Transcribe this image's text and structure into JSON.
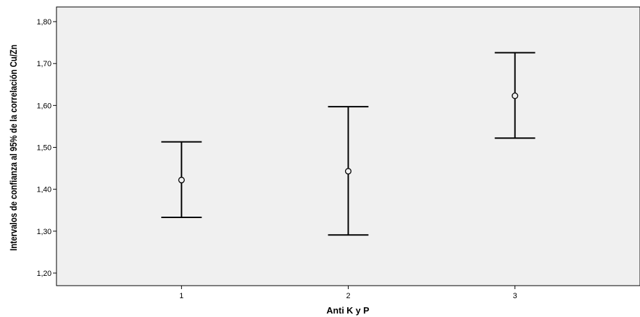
{
  "chart_data": {
    "type": "errorbar",
    "title": "",
    "xlabel": "Anti K y P",
    "ylabel": "Intervalos de confianza al 95% de la correlación Cu/Zn",
    "categories": [
      "1",
      "2",
      "3"
    ],
    "points": [
      {
        "category": "1",
        "mean": 1.422,
        "lower": 1.333,
        "upper": 1.513
      },
      {
        "category": "2",
        "mean": 1.443,
        "lower": 1.291,
        "upper": 1.597
      },
      {
        "category": "3",
        "mean": 1.623,
        "lower": 1.522,
        "upper": 1.726
      }
    ],
    "ylim": [
      1.17,
      1.835
    ],
    "yticks": [
      1.2,
      1.3,
      1.4,
      1.5,
      1.6,
      1.7,
      1.8
    ],
    "ytick_labels": [
      "1,20",
      "1,30",
      "1,40",
      "1,50",
      "1,60",
      "1,70",
      "1,80"
    ],
    "grid": false,
    "colors": {
      "plot_background": "#f0f0f0",
      "marks": "#000000"
    }
  }
}
